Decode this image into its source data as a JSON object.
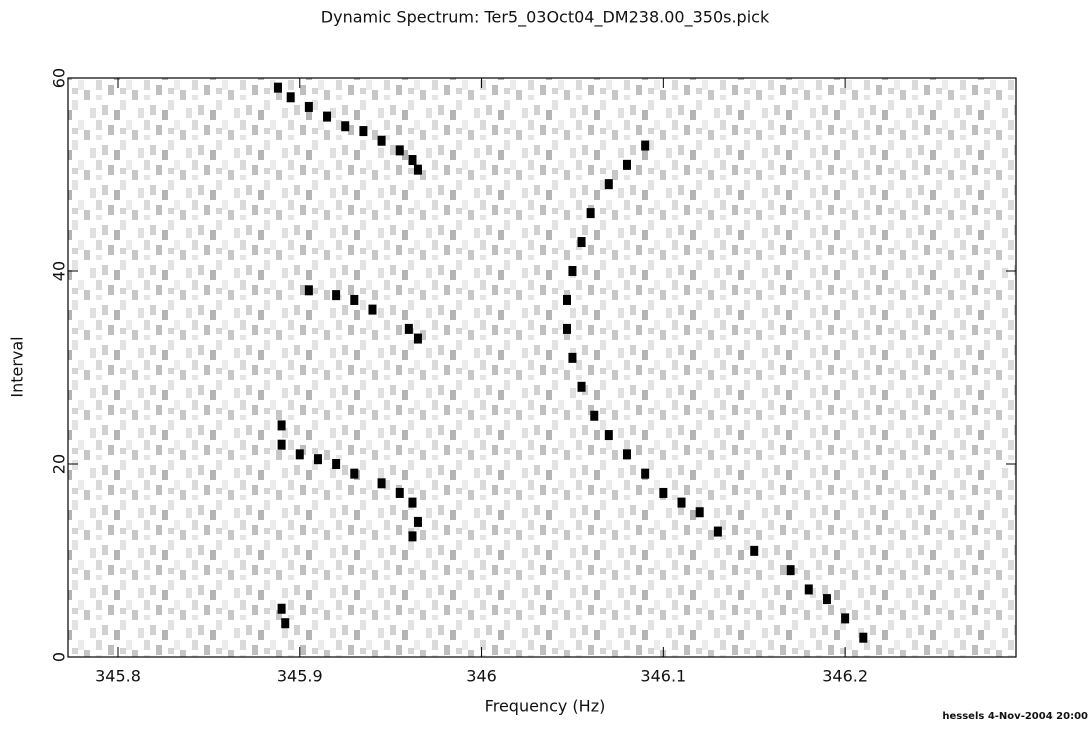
{
  "chart_data": {
    "type": "scatter",
    "title": "Dynamic Spectrum: Ter5_03Oct04_DM238.00_350s.pick",
    "xlabel": "Frequency (Hz)",
    "ylabel": "Interval",
    "footer": "hessels  4-Nov-2004 20:00",
    "xlim": [
      345.7725,
      346.294
    ],
    "ylim": [
      0,
      60
    ],
    "xticks": [
      345.8,
      345.9,
      346,
      346.1,
      346.2
    ],
    "yticks": [
      0,
      20,
      40,
      60
    ],
    "series": [
      {
        "color": "#000000",
        "x": [
          345.888,
          345.895,
          345.905,
          345.915,
          345.925,
          345.935,
          345.945,
          345.955,
          345.962,
          345.965,
          345.905,
          345.92,
          345.93,
          345.94,
          345.96,
          345.965,
          345.89,
          345.89,
          345.9,
          345.91,
          345.92,
          345.93,
          345.945,
          345.955,
          345.962,
          345.965,
          345.962,
          345.89,
          345.892,
          346.09,
          346.08,
          346.07,
          346.06,
          346.055,
          346.05,
          346.047,
          346.047,
          346.05,
          346.055,
          346.062,
          346.07,
          346.08,
          346.09,
          346.1,
          346.11,
          346.12,
          346.13,
          346.15,
          346.17,
          346.18,
          346.19,
          346.2,
          346.21
        ],
        "y": [
          59,
          58,
          57,
          56,
          55,
          54.5,
          53.5,
          52.5,
          51.5,
          50.5,
          38,
          37.5,
          37,
          36,
          34,
          33,
          24,
          22,
          21,
          20.5,
          20,
          19,
          18,
          17,
          16,
          14,
          12.5,
          5,
          3.5,
          53,
          51,
          49,
          46,
          43,
          40,
          37,
          34,
          31,
          28,
          25,
          23,
          21,
          19,
          17,
          16,
          15,
          13,
          11,
          9,
          7,
          6,
          4,
          2
        ]
      }
    ]
  }
}
